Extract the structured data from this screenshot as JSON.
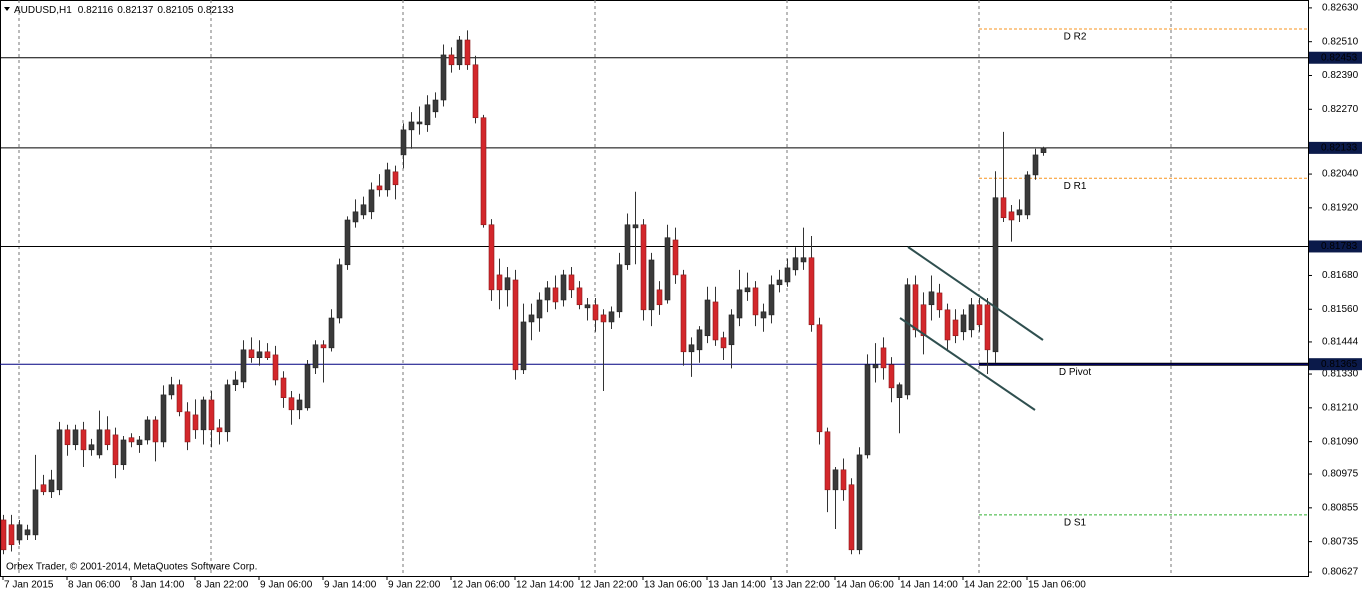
{
  "chart_data": {
    "type": "candlestick",
    "symbol": "AUDUSD,H1",
    "copyright": "Orbex Trader, © 2001-2014, MetaQuotes Software Corp.",
    "up_color": "#3a3a3a",
    "down_color": "#d3272b",
    "categories": [
      "7 Jan 2015",
      null,
      null,
      null,
      null,
      null,
      null,
      null,
      "8 Jan 06:00",
      null,
      null,
      null,
      null,
      null,
      null,
      null,
      "8 Jan 14:00",
      null,
      null,
      null,
      null,
      null,
      null,
      null,
      "8 Jan 22:00",
      null,
      null,
      null,
      null,
      null,
      null,
      null,
      "9 Jan 06:00",
      null,
      null,
      null,
      null,
      null,
      null,
      null,
      "9 Jan 14:00",
      null,
      null,
      null,
      null,
      null,
      null,
      null,
      "9 Jan 22:00",
      null,
      null,
      null,
      null,
      null,
      null,
      null,
      "12 Jan 06:00",
      null,
      null,
      null,
      null,
      null,
      null,
      null,
      "12 Jan 14:00",
      null,
      null,
      null,
      null,
      null,
      null,
      null,
      "12 Jan 22:00",
      null,
      null,
      null,
      null,
      null,
      null,
      null,
      "13 Jan 06:00",
      null,
      null,
      null,
      null,
      null,
      null,
      null,
      "13 Jan 14:00",
      null,
      null,
      null,
      null,
      null,
      null,
      null,
      "13 Jan 22:00",
      null,
      null,
      null,
      null,
      null,
      null,
      null,
      "14 Jan 06:00",
      null,
      null,
      null,
      null,
      null,
      null,
      null,
      "14 Jan 14:00",
      null,
      null,
      null,
      null,
      null,
      null,
      null,
      "14 Jan 22:00",
      null,
      null,
      null,
      null,
      null,
      null,
      null,
      "15 Jan 06:00",
      null,
      null
    ],
    "open": [
      0.80812,
      0.80795,
      0.80741,
      0.80759,
      0.80759,
      0.80937,
      0.80912,
      0.80919,
      0.81132,
      0.81079,
      0.81132,
      0.81061,
      0.81043,
      0.81132,
      0.81114,
      0.81008,
      0.81104,
      0.81079,
      0.81096,
      0.81167,
      0.81089,
      0.81256,
      0.81292,
      0.81196,
      0.81185,
      0.81132,
      0.81238,
      0.81139,
      0.81125,
      0.81292,
      0.81302,
      0.81416,
      0.81388,
      0.81409,
      0.81398,
      0.81316,
      0.81246,
      0.81203,
      0.8121,
      0.81352,
      0.81434,
      0.81423,
      0.81529,
      0.81718,
      0.8187,
      0.81895,
      0.81906,
      0.81998,
      0.81984,
      0.82048,
      0.82108,
      0.82197,
      0.82218,
      0.82215,
      0.82261,
      0.82303,
      0.82463,
      0.82428,
      0.82516,
      0.82428,
      0.8224,
      0.8186,
      0.81682,
      0.81629,
      0.81664,
      0.81345,
      0.81515,
      0.81529,
      0.81593,
      0.81636,
      0.81593,
      0.81682,
      0.81636,
      0.81565,
      0.81576,
      0.8154,
      0.81515,
      0.81551,
      0.81718,
      0.81849,
      0.8186,
      0.81558,
      0.81629,
      0.81593,
      0.81806,
      0.81682,
      0.81409,
      0.81416,
      0.81466,
      0.81586,
      0.81459,
      0.81434,
      0.81529,
      0.81622,
      0.81636,
      0.81529,
      0.8154,
      0.81647,
      0.81657,
      0.817,
      0.81728,
      0.81743,
      0.81505,
      0.81125,
      0.80919,
      0.8099,
      0.80937,
      0.80706,
      0.81043,
      0.81352,
      0.81423,
      0.81363,
      0.81246,
      0.81256,
      0.81647,
      0.81576,
      0.81576,
      0.81618,
      0.81558,
      0.81522,
      0.8148,
      0.81487,
      0.81576,
      0.81576,
      0.81409,
      0.81956,
      0.81906,
      0.81895,
      0.81895,
      0.82037,
      0.82116
    ],
    "high": [
      0.8083,
      0.8083,
      0.80812,
      0.80795,
      0.81043,
      0.80972,
      0.8099,
      0.8116,
      0.8115,
      0.8115,
      0.8116,
      0.811,
      0.812,
      0.8118,
      0.8114,
      0.8111,
      0.8112,
      0.8111,
      0.8118,
      0.8118,
      0.8129,
      0.8132,
      0.8131,
      0.8123,
      0.8124,
      0.8125,
      0.8127,
      0.8117,
      0.8131,
      0.8134,
      0.8145,
      0.8146,
      0.8145,
      0.8144,
      0.8143,
      0.8134,
      0.8127,
      0.8126,
      0.8138,
      0.8145,
      0.8145,
      0.8156,
      0.8174,
      0.8189,
      0.8195,
      0.8196,
      0.8201,
      0.8204,
      0.8208,
      0.8207,
      0.8222,
      0.8226,
      0.8228,
      0.8232,
      0.8233,
      0.825,
      0.8249,
      0.8253,
      0.8255,
      0.8246,
      0.8225,
      0.8188,
      0.8174,
      0.8171,
      0.817,
      0.8158,
      0.8158,
      0.8162,
      0.8166,
      0.8168,
      0.817,
      0.8171,
      0.8166,
      0.816,
      0.816,
      0.8156,
      0.8157,
      0.8176,
      0.819,
      0.81977,
      0.8188,
      0.8176,
      0.8166,
      0.8186,
      0.8185,
      0.817,
      0.8146,
      0.815,
      0.8164,
      0.8164,
      0.8148,
      0.8156,
      0.817,
      0.8169,
      0.8166,
      0.8158,
      0.8168,
      0.817,
      0.8174,
      0.8178,
      0.8185,
      0.8182,
      0.8153,
      0.8114,
      0.81,
      0.8103,
      0.8096,
      0.8107,
      0.814,
      0.8144,
      0.8146,
      0.8139,
      0.813,
      0.8167,
      0.8168,
      0.8162,
      0.8168,
      0.8165,
      0.8158,
      0.8156,
      0.8156,
      0.816,
      0.816,
      0.816,
      0.8205,
      0.8219,
      0.8193,
      0.8195,
      0.8205,
      0.8213,
      0.82137
    ],
    "low": [
      0.8069,
      0.807,
      0.80724,
      0.80741,
      0.80741,
      0.809,
      0.8089,
      0.809,
      0.8104,
      0.8106,
      0.81,
      0.8104,
      0.8103,
      0.8106,
      0.8096,
      0.8099,
      0.8107,
      0.8105,
      0.8108,
      0.8102,
      0.8107,
      0.8124,
      0.8118,
      0.8106,
      0.811,
      0.8108,
      0.8107,
      0.8108,
      0.8109,
      0.8127,
      0.8128,
      0.8137,
      0.8136,
      0.8138,
      0.8129,
      0.8121,
      0.8115,
      0.8117,
      0.812,
      0.8133,
      0.813,
      0.8141,
      0.8151,
      0.817,
      0.8185,
      0.8188,
      0.8188,
      0.8196,
      0.8196,
      0.8195,
      0.8206,
      0.8213,
      0.8218,
      0.8219,
      0.8224,
      0.8228,
      0.824,
      0.8241,
      0.8241,
      0.8222,
      0.8185,
      0.8159,
      0.8156,
      0.8157,
      0.8131,
      0.8133,
      0.8145,
      0.8148,
      0.8155,
      0.8156,
      0.8157,
      0.816,
      0.8156,
      0.8152,
      0.8148,
      0.8127,
      0.8149,
      0.8153,
      0.817,
      0.8172,
      0.8152,
      0.815,
      0.8154,
      0.8158,
      0.8165,
      0.8136,
      0.8132,
      0.8137,
      0.8144,
      0.8143,
      0.8138,
      0.8135,
      0.815,
      0.8159,
      0.815,
      0.8148,
      0.8151,
      0.8162,
      0.8164,
      0.8168,
      0.817,
      0.8148,
      0.8108,
      0.8084,
      0.8078,
      0.8088,
      0.8069,
      0.8069,
      0.8103,
      0.813,
      0.8131,
      0.8123,
      0.8112,
      0.8124,
      0.8146,
      0.814,
      0.8152,
      0.8153,
      0.8141,
      0.8144,
      0.8145,
      0.8146,
      0.8148,
      0.8133,
      0.8137,
      0.8187,
      0.818,
      0.8187,
      0.8188,
      0.8202,
      0.82105
    ],
    "close": [
      0.80706,
      0.80724,
      0.80795,
      0.80777,
      0.80919,
      0.80912,
      0.80954,
      0.81132,
      0.81079,
      0.81132,
      0.81061,
      0.81079,
      0.81132,
      0.81079,
      0.81008,
      0.81096,
      0.81089,
      0.81096,
      0.81167,
      0.81089,
      0.81256,
      0.81292,
      0.81196,
      0.81089,
      0.81132,
      0.81238,
      0.81132,
      0.81125,
      0.81292,
      0.81309,
      0.81416,
      0.81388,
      0.81409,
      0.81388,
      0.81309,
      0.81246,
      0.81203,
      0.81238,
      0.81363,
      0.81434,
      0.81423,
      0.81529,
      0.81718,
      0.81877,
      0.81906,
      0.81931,
      0.81984,
      0.81984,
      0.82055,
      0.82002,
      0.82197,
      0.82225,
      0.82225,
      0.82286,
      0.82303,
      0.82463,
      0.82428,
      0.82516,
      0.82428,
      0.8224,
      0.8186,
      0.81629,
      0.81629,
      0.81672,
      0.81345,
      0.81515,
      0.8154,
      0.81593,
      0.81636,
      0.81586,
      0.81682,
      0.81629,
      0.81576,
      0.81576,
      0.81522,
      0.81515,
      0.81551,
      0.81718,
      0.8186,
      0.8186,
      0.81558,
      0.81735,
      0.81576,
      0.81814,
      0.81682,
      0.81409,
      0.81434,
      0.81487,
      0.81593,
      0.81451,
      0.81423,
      0.8154,
      0.81629,
      0.81636,
      0.8154,
      0.81551,
      0.81647,
      0.81664,
      0.81707,
      0.81743,
      0.81743,
      0.81505,
      0.81125,
      0.80919,
      0.8099,
      0.80919,
      0.80706,
      0.81043,
      0.81363,
      0.81363,
      0.81352,
      0.81281,
      0.81292,
      0.81647,
      0.81487,
      0.81466,
      0.81622,
      0.81558,
      0.81451,
      0.81466,
      0.8154,
      0.81576,
      0.81505,
      0.81416,
      0.81956,
      0.81885,
      0.81877,
      0.81913,
      0.82037,
      0.82108,
      0.82133
    ],
    "ylim": [
      0.80613,
      0.82658
    ],
    "yticks": [
      {
        "value": 0.8263,
        "label": "0.82630"
      },
      {
        "value": 0.8251,
        "label": "0.82510"
      },
      {
        "value": 0.8239,
        "label": "0.82390"
      },
      {
        "value": 0.8227,
        "label": "0.82270"
      },
      {
        "value": 0.8204,
        "label": "0.82040"
      },
      {
        "value": 0.8192,
        "label": "0.81920"
      },
      {
        "value": 0.8168,
        "label": "0.81680"
      },
      {
        "value": 0.8156,
        "label": "0.81560"
      },
      0.81444,
      {
        "value": 0.8133,
        "label": "0.81330"
      },
      {
        "value": 0.8121,
        "label": "0.81210"
      },
      {
        "value": 0.8109,
        "label": "0.81090"
      },
      0.80975,
      0.80855,
      0.80735,
      0.80627
    ],
    "hlines": [
      {
        "value": 0.82453,
        "color": "#000000"
      },
      {
        "value": 0.82133,
        "color": "#000000"
      },
      {
        "value": 0.81783,
        "color": "#000000"
      },
      {
        "value": 0.81365,
        "color": "#000080"
      }
    ],
    "price_label_color": "#0b1a4a",
    "levels": [
      {
        "name": "D R2",
        "value": 0.82555,
        "color": "#f7931e",
        "dashed": true
      },
      {
        "name": "D R1",
        "value": 0.82025,
        "color": "#f7931e",
        "dashed": true
      },
      {
        "name": "D Pivot",
        "value": 0.81365,
        "color": "#000000",
        "dashed": false
      },
      {
        "name": "D S1",
        "value": 0.8083,
        "color": "#33b233",
        "dashed": true
      }
    ]
  }
}
